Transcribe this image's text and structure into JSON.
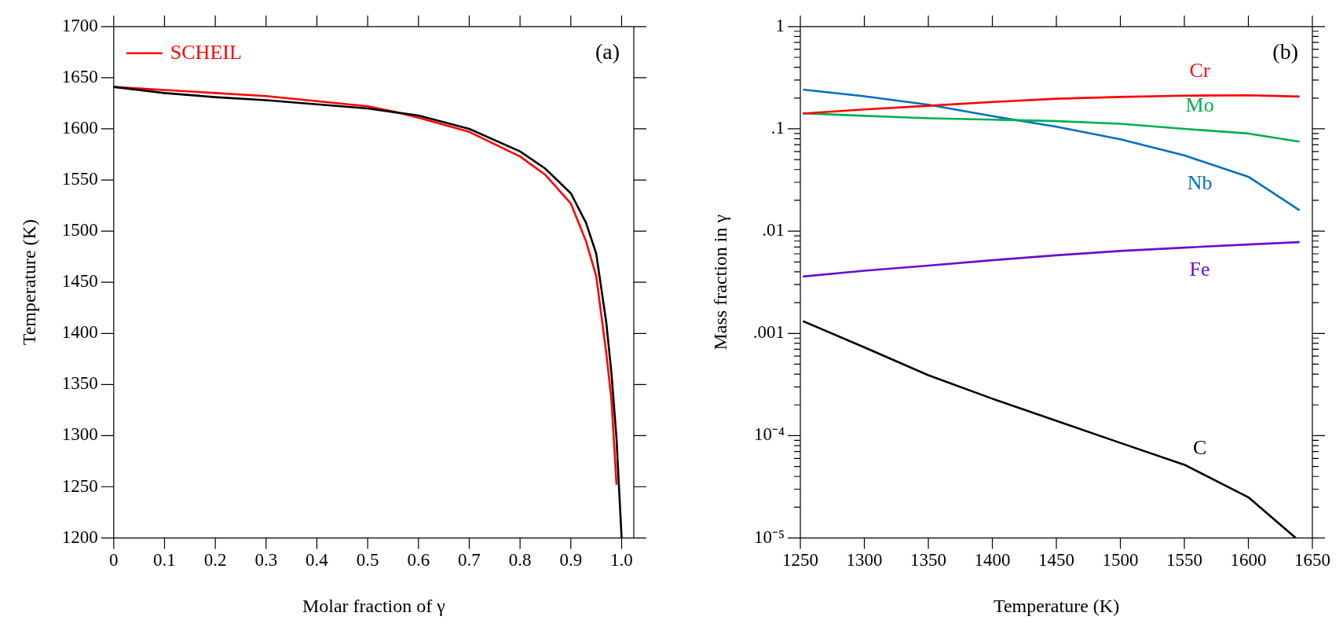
{
  "chart_data": [
    {
      "type": "line",
      "xlabel": "Molar fraction of γ",
      "ylabel": "Temperature (K)",
      "annotations": [
        "(a)"
      ],
      "legend": "top left",
      "line_style": "solid",
      "xlim": [
        0,
        1.024
      ],
      "xticks": [
        0,
        0.1,
        0.2,
        0.3,
        0.4,
        0.5,
        0.6,
        0.7,
        0.8,
        0.9,
        {
          "value": 1,
          "label": "1.0"
        }
      ],
      "ylim": [
        1200,
        1700
      ],
      "yticks": [
        1200,
        1250,
        1300,
        1350,
        1400,
        1450,
        1500,
        1550,
        1600,
        1650,
        1700
      ],
      "series": [
        {
          "color": "#000000",
          "x": [
            0,
            0.1,
            0.2,
            0.3,
            0.4,
            0.5,
            0.6,
            0.7,
            0.8,
            0.85,
            0.9,
            0.93,
            0.95,
            0.97,
            0.98,
            0.99,
            0.995,
            1.0
          ],
          "values": [
            1641,
            1635,
            1631,
            1628,
            1624,
            1620,
            1613,
            1600,
            1578,
            1561,
            1537,
            1508,
            1478,
            1410,
            1361,
            1297,
            1248,
            1200
          ]
        },
        {
          "name": "SCHEIL",
          "color": "#ff0000",
          "x": [
            0,
            0.1,
            0.2,
            0.3,
            0.4,
            0.5,
            0.55,
            0.6,
            0.7,
            0.8,
            0.85,
            0.9,
            0.93,
            0.95,
            0.97,
            0.98,
            0.99
          ],
          "values": [
            1641,
            1638,
            1635,
            1632,
            1627,
            1622,
            1617,
            1611,
            1597,
            1573,
            1555,
            1527,
            1490,
            1456,
            1380,
            1335,
            1252
          ]
        }
      ]
    },
    {
      "type": "line",
      "xlabel": "Temperature (K)",
      "ylabel": "Mass fraction in γ",
      "annotations": [
        "(b)"
      ],
      "log": "y",
      "line_style": "solid",
      "xlim": [
        1250,
        1650
      ],
      "xticks": [
        1250,
        1300,
        1350,
        1400,
        1450,
        1500,
        1550,
        1600,
        1650
      ],
      "ylim": [
        1e-05,
        1
      ],
      "yticks": [
        {
          "value": 1e-05,
          "label": "10⁻⁵"
        },
        {
          "value": 2e-05,
          "label": null
        },
        {
          "value": 3e-05,
          "label": null
        },
        {
          "value": 4e-05,
          "label": null
        },
        {
          "value": 5e-05,
          "label": null
        },
        {
          "value": 6e-05,
          "label": null
        },
        {
          "value": 7e-05,
          "label": null
        },
        {
          "value": 8e-05,
          "label": null
        },
        {
          "value": 9e-05,
          "label": null
        },
        {
          "value": 0.0001,
          "label": "10⁻⁴"
        },
        {
          "value": 0.0002,
          "label": null
        },
        {
          "value": 0.0003,
          "label": null
        },
        {
          "value": 0.0004,
          "label": null
        },
        {
          "value": 0.0005,
          "label": null
        },
        {
          "value": 0.0006,
          "label": null
        },
        {
          "value": 0.0007,
          "label": null
        },
        {
          "value": 0.0008,
          "label": null
        },
        {
          "value": 0.0009,
          "label": null
        },
        {
          "value": 0.001,
          "label": ".001"
        },
        {
          "value": 0.002,
          "label": null
        },
        {
          "value": 0.003,
          "label": null
        },
        {
          "value": 0.004,
          "label": null
        },
        {
          "value": 0.005,
          "label": null
        },
        {
          "value": 0.006,
          "label": null
        },
        {
          "value": 0.007,
          "label": null
        },
        {
          "value": 0.008,
          "label": null
        },
        {
          "value": 0.009,
          "label": null
        },
        {
          "value": 0.01,
          "label": ".01"
        },
        {
          "value": 0.02,
          "label": null
        },
        {
          "value": 0.03,
          "label": null
        },
        {
          "value": 0.04,
          "label": null
        },
        {
          "value": 0.05,
          "label": null
        },
        {
          "value": 0.06,
          "label": null
        },
        {
          "value": 0.07,
          "label": null
        },
        {
          "value": 0.08,
          "label": null
        },
        {
          "value": 0.09,
          "label": null
        },
        {
          "value": 0.1,
          "label": ".1"
        },
        {
          "value": 0.2,
          "label": null
        },
        {
          "value": 0.3,
          "label": null
        },
        {
          "value": 0.4,
          "label": null
        },
        {
          "value": 0.5,
          "label": null
        },
        {
          "value": 0.6,
          "label": null
        },
        {
          "value": 0.7,
          "label": null
        },
        {
          "value": 0.8,
          "label": null
        },
        {
          "value": 0.9,
          "label": null
        },
        {
          "value": 1,
          "label": "1"
        }
      ],
      "series": [
        {
          "name": "Cr",
          "color": "#ff0000",
          "x": [
            1252,
            1300,
            1350,
            1400,
            1450,
            1500,
            1550,
            1600,
            1640
          ],
          "values": [
            0.141,
            0.155,
            0.168,
            0.183,
            0.197,
            0.205,
            0.211,
            0.213,
            0.207
          ]
        },
        {
          "name": "Mo",
          "color": "#00b050",
          "x": [
            1252,
            1300,
            1350,
            1400,
            1450,
            1500,
            1550,
            1600,
            1640
          ],
          "values": [
            0.142,
            0.134,
            0.127,
            0.123,
            0.119,
            0.112,
            0.1,
            0.09,
            0.075
          ]
        },
        {
          "name": "Nb",
          "color": "#0070c0",
          "x": [
            1252,
            1300,
            1350,
            1400,
            1450,
            1500,
            1550,
            1600,
            1640
          ],
          "values": [
            0.242,
            0.208,
            0.172,
            0.133,
            0.105,
            0.079,
            0.055,
            0.034,
            0.016
          ]
        },
        {
          "name": "Fe",
          "color": "#6a0dd0",
          "x": [
            1252,
            1300,
            1350,
            1400,
            1450,
            1500,
            1550,
            1600,
            1640
          ],
          "values": [
            0.0036,
            0.0041,
            0.0046,
            0.0052,
            0.0058,
            0.0064,
            0.0069,
            0.0074,
            0.0078
          ]
        },
        {
          "name": "C",
          "color": "#000000",
          "x": [
            1252,
            1300,
            1350,
            1400,
            1450,
            1500,
            1550,
            1600,
            1637
          ],
          "values": [
            0.00132,
            0.00073,
            0.00039,
            0.00023,
            0.00014,
            8.5e-05,
            5.2e-05,
            2.5e-05,
            1e-05
          ]
        }
      ]
    }
  ]
}
